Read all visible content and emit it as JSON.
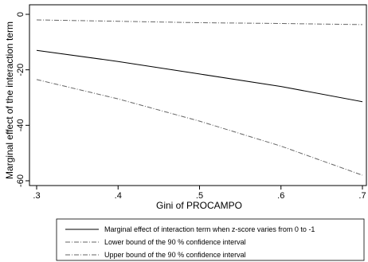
{
  "chart_data": {
    "type": "line",
    "xlabel": "Gini of PROCAMPO",
    "ylabel": "Marginal effect of the interaction term",
    "xlim": [
      0.3,
      0.7
    ],
    "ylim": [
      -60,
      0
    ],
    "xticks": [
      0.3,
      0.4,
      0.5,
      0.6,
      0.7
    ],
    "xtick_labels": [
      ".3",
      ".4",
      ".5",
      ".6",
      ".7"
    ],
    "yticks": [
      0,
      -20,
      -40,
      -60
    ],
    "ytick_labels": [
      "0",
      "-20",
      "-40",
      "-60"
    ],
    "grid": false,
    "legend_position": "bottom",
    "series": [
      {
        "name": "Marginal effect of interaction term when z-score varies from 0 to -1",
        "style": "solid",
        "color": "#000000",
        "x": [
          0.3,
          0.4,
          0.5,
          0.6,
          0.7
        ],
        "y": [
          -13,
          -17,
          -21.5,
          -26,
          -31.5
        ]
      },
      {
        "name": "Lower bound of the 90 % confidence interval",
        "style": "dash-dot",
        "color": "#666666",
        "x": [
          0.3,
          0.4,
          0.5,
          0.6,
          0.7
        ],
        "y": [
          -23.5,
          -30.5,
          -38.5,
          -47.5,
          -58
        ]
      },
      {
        "name": "Upper bound of the 90 % confidence interval",
        "style": "dash-dot",
        "color": "#666666",
        "x": [
          0.3,
          0.4,
          0.5,
          0.6,
          0.7
        ],
        "y": [
          -2,
          -2.5,
          -3,
          -3.3,
          -3.7
        ]
      }
    ]
  }
}
